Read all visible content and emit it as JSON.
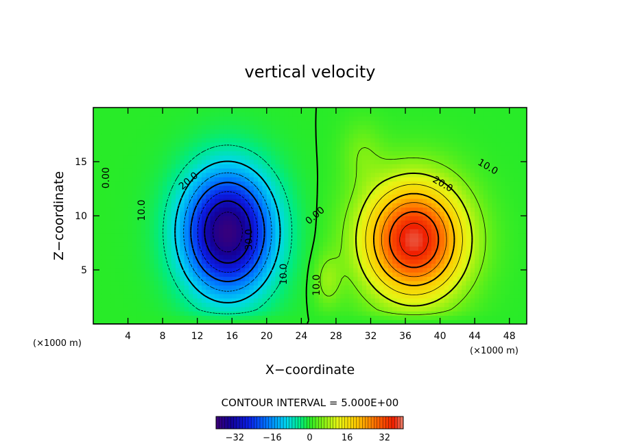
{
  "chart_data": {
    "type": "heatmap",
    "title": "vertical velocity",
    "xlabel": "X−coordinate",
    "ylabel": "Z−coordinate",
    "x_unit": "(×1000 m)",
    "y_unit": "(×1000 m)",
    "xlim": [
      0,
      50
    ],
    "ylim": [
      0,
      20
    ],
    "x_ticks": [
      4,
      8,
      12,
      16,
      20,
      24,
      28,
      32,
      36,
      40,
      44,
      48
    ],
    "x_tick_labels": [
      "4",
      "8",
      "12",
      "16",
      "20",
      "24",
      "28",
      "32",
      "36",
      "40",
      "44",
      "48"
    ],
    "y_ticks": [
      5,
      10,
      15
    ],
    "y_tick_labels": [
      "5",
      "10",
      "15"
    ],
    "contour_interval_text": "CONTOUR INTERVAL = 5.000E+00",
    "contour_interval": 5,
    "colorbar": {
      "range": [
        -40,
        40
      ],
      "ticks": [
        -32,
        -16,
        0,
        16,
        32
      ],
      "tick_labels": [
        "−32",
        "−16",
        "0",
        "16",
        "32"
      ]
    },
    "contour_labels": [
      {
        "text": "0.00",
        "x": 1.5,
        "z": 13.5
      },
      {
        "text": "0.00",
        "x": 25.6,
        "z": 10.0
      },
      {
        "text": "10.0",
        "x": 5.6,
        "z": 10.5
      },
      {
        "text": "20.0",
        "x": 11.0,
        "z": 13.2
      },
      {
        "text": "30.0",
        "x": 18.0,
        "z": 7.8
      },
      {
        "text": "10.0",
        "x": 22.0,
        "z": 4.6
      },
      {
        "text": "10.0",
        "x": 25.8,
        "z": 3.6
      },
      {
        "text": "20.0",
        "x": 40.3,
        "z": 12.9
      },
      {
        "text": "10.0",
        "x": 45.5,
        "z": 14.5
      }
    ],
    "extrema": {
      "downdraft": {
        "x": 15.5,
        "z": 8.5,
        "value": -37
      },
      "updraft": {
        "x": 37.0,
        "z": 7.8,
        "value": 37
      }
    },
    "grid": false,
    "colormap": "rainbow (purple-blue-cyan-green-yellow-red)"
  }
}
